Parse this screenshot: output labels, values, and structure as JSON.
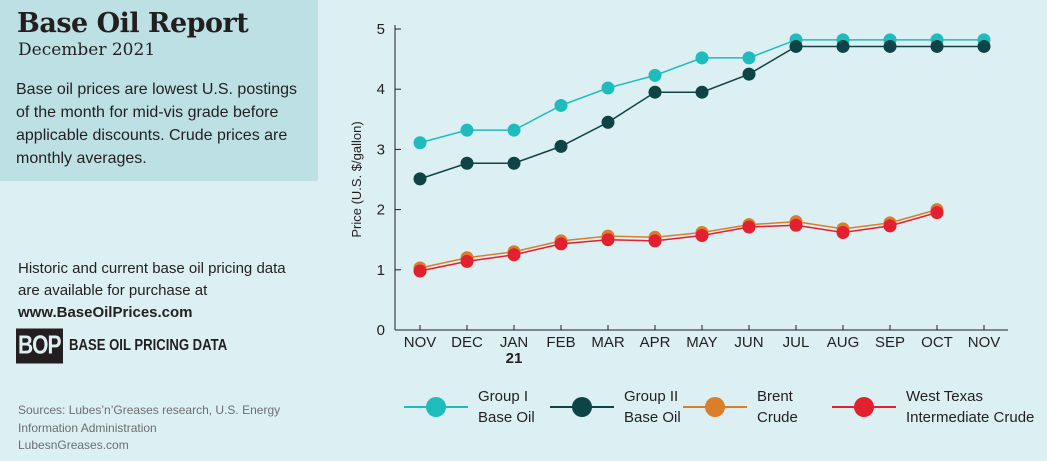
{
  "header": {
    "title": "Base Oil Report",
    "subtitle": "December 2021",
    "description": "Base oil prices are lowest U.S. postings of the month for mid-vis grade before applicable discounts. Crude prices are monthly averages."
  },
  "purchase": {
    "text": "Historic and current base oil pricing data are available for purchase at",
    "url": "www.BaseOilPrices.com"
  },
  "logo": {
    "mark": "BOP",
    "text": "BASE OIL PRICING DATA"
  },
  "sources": {
    "text": "Sources: Lubes’n’Greases research, U.S. Energy Information Administration",
    "site": "LubesnGreases.com"
  },
  "colors": {
    "background": "#dceff3",
    "header_box": "#bde0e4",
    "group1": "#1fbcbd",
    "group2": "#0e4445",
    "brent": "#dc7d2c",
    "wti": "#e3202f"
  },
  "chart_data": {
    "type": "line",
    "title": "",
    "xlabel": "",
    "ylabel": "Price (U.S. $/gallon)",
    "ylim": [
      0,
      5
    ],
    "yticks": [
      0,
      1,
      2,
      3,
      4,
      5
    ],
    "categories": [
      "NOV",
      "DEC",
      "JAN",
      "FEB",
      "MAR",
      "APR",
      "MAY",
      "JUN",
      "JUL",
      "AUG",
      "SEP",
      "OCT",
      "NOV"
    ],
    "category_sublabels": [
      "",
      "",
      "21",
      "",
      "",
      "",
      "",
      "",
      "",
      "",
      "",
      "",
      ""
    ],
    "grid": false,
    "legend_position": "bottom",
    "series": [
      {
        "name": "Group I Base Oil",
        "legend_label": "Group I\nBase Oil",
        "color": "#1fbcbd",
        "values": [
          3.11,
          3.32,
          3.32,
          3.73,
          4.02,
          4.23,
          4.52,
          4.52,
          4.82,
          4.82,
          4.82,
          4.82,
          4.82
        ]
      },
      {
        "name": "Group II Base Oil",
        "legend_label": "Group II\nBase Oil",
        "color": "#0e4445",
        "values": [
          2.51,
          2.77,
          2.77,
          3.05,
          3.45,
          3.95,
          3.95,
          4.25,
          4.71,
          4.71,
          4.71,
          4.71,
          4.71
        ]
      },
      {
        "name": "Brent Crude",
        "legend_label": "Brent\nCrude",
        "color": "#dc7d2c",
        "values": [
          1.03,
          1.2,
          1.3,
          1.48,
          1.56,
          1.54,
          1.62,
          1.75,
          1.8,
          1.68,
          1.78,
          2.0,
          null
        ]
      },
      {
        "name": "West Texas Intermediate Crude",
        "legend_label": "West Texas\nIntermediate Crude",
        "color": "#e3202f",
        "values": [
          0.98,
          1.14,
          1.25,
          1.43,
          1.5,
          1.48,
          1.57,
          1.71,
          1.74,
          1.62,
          1.73,
          1.95,
          null
        ]
      }
    ]
  }
}
